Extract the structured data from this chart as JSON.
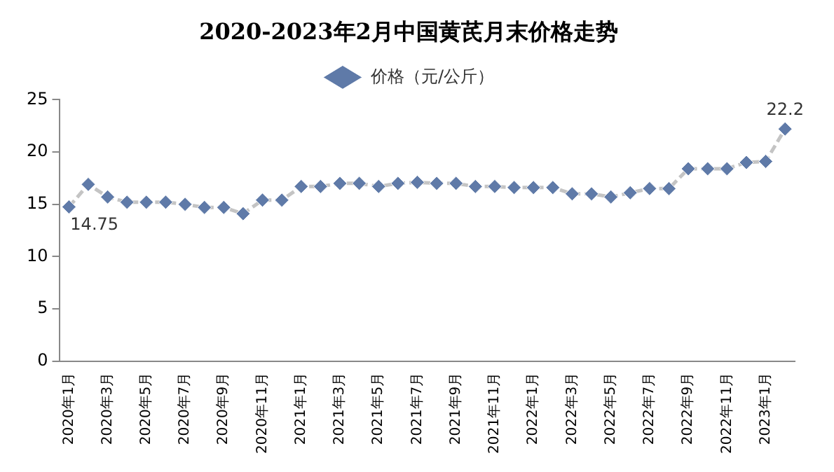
{
  "chart_data": {
    "type": "line",
    "title": "2020-2023年2月中国黄芪月末价格走势",
    "categories": [
      "2020年1月",
      null,
      "2020年3月",
      null,
      "2020年5月",
      null,
      "2020年7月",
      null,
      "2020年9月",
      null,
      "2020年11月",
      null,
      "2021年1月",
      null,
      "2021年3月",
      null,
      "2021年5月",
      null,
      "2021年7月",
      null,
      "2021年9月",
      null,
      "2021年11月",
      null,
      "2022年1月",
      null,
      "2022年3月",
      null,
      "2022年5月",
      null,
      "2022年7月",
      null,
      "2022年9月",
      null,
      "2022年11月",
      null,
      "2023年1月",
      null
    ],
    "series": [
      {
        "name": "价格（元/公斤）",
        "color": "#5f7aa8",
        "values": [
          14.75,
          16.9,
          15.7,
          15.2,
          15.2,
          15.2,
          15.0,
          14.7,
          14.7,
          14.1,
          15.4,
          15.4,
          16.7,
          16.7,
          17.0,
          17.0,
          16.7,
          17.0,
          17.1,
          17.0,
          17.0,
          16.7,
          16.7,
          16.6,
          16.6,
          16.6,
          16.0,
          16.0,
          15.7,
          16.1,
          16.5,
          16.5,
          18.4,
          18.4,
          18.4,
          19.0,
          19.1,
          22.2
        ],
        "value_labels": [
          "14.75",
          null,
          null,
          null,
          null,
          null,
          null,
          null,
          null,
          null,
          null,
          null,
          null,
          null,
          null,
          null,
          null,
          null,
          null,
          null,
          null,
          null,
          null,
          null,
          null,
          null,
          null,
          null,
          null,
          null,
          null,
          null,
          null,
          null,
          null,
          null,
          null,
          "22.2"
        ]
      }
    ],
    "ylim": [
      0,
      25
    ],
    "yticks": [
      0,
      5,
      10,
      15,
      20,
      25
    ],
    "grid": false,
    "legend": "top",
    "marker": "diamond",
    "line_style": "dashed"
  }
}
